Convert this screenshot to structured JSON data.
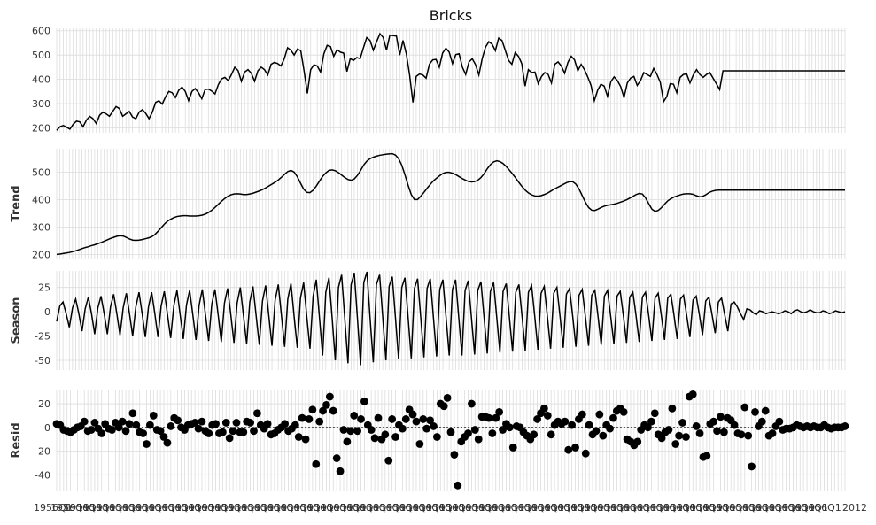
{
  "chart_data": [
    {
      "type": "line",
      "title": "Bricks",
      "ylabel": "",
      "ylim": [
        180,
        610
      ],
      "yticks": [
        200,
        300,
        400,
        500,
        600
      ],
      "series": [
        {
          "values": [
            190,
            205,
            210,
            203,
            195,
            215,
            228,
            225,
            205,
            232,
            248,
            238,
            218,
            252,
            265,
            258,
            248,
            268,
            288,
            280,
            248,
            258,
            268,
            245,
            238,
            265,
            275,
            260,
            238,
            265,
            305,
            312,
            298,
            328,
            350,
            345,
            325,
            355,
            368,
            350,
            312,
            350,
            362,
            345,
            320,
            358,
            360,
            352,
            340,
            378,
            402,
            408,
            395,
            420,
            450,
            436,
            392,
            430,
            440,
            425,
            392,
            435,
            450,
            440,
            418,
            462,
            470,
            465,
            455,
            485,
            530,
            520,
            500,
            525,
            518,
            435,
            342,
            440,
            460,
            455,
            430,
            505,
            540,
            535,
            495,
            522,
            512,
            508,
            432,
            485,
            478,
            490,
            485,
            530,
            572,
            560,
            520,
            555,
            588,
            572,
            520,
            582,
            580,
            578,
            500,
            560,
            505,
            418,
            305,
            412,
            422,
            418,
            405,
            462,
            480,
            482,
            450,
            508,
            528,
            512,
            465,
            502,
            505,
            450,
            420,
            472,
            485,
            460,
            418,
            485,
            532,
            555,
            545,
            518,
            570,
            560,
            520,
            478,
            462,
            510,
            495,
            465,
            372,
            440,
            428,
            430,
            382,
            412,
            428,
            420,
            385,
            462,
            472,
            455,
            425,
            470,
            495,
            480,
            435,
            462,
            440,
            410,
            375,
            312,
            355,
            380,
            372,
            330,
            390,
            410,
            395,
            370,
            325,
            385,
            405,
            412,
            375,
            395,
            428,
            420,
            412,
            445,
            420,
            388,
            308,
            330,
            382,
            380,
            345,
            408,
            420,
            422,
            385,
            418,
            440,
            420,
            408,
            420,
            428,
            405,
            382,
            358,
            435,
            435,
            435,
            435,
            435,
            435,
            435,
            435,
            435,
            435,
            435,
            435,
            435,
            435,
            435,
            435,
            435,
            435,
            435,
            435,
            435,
            435,
            435,
            435,
            435,
            435,
            435,
            435,
            435,
            435,
            435,
            435,
            435,
            435,
            435,
            435,
            435,
            435
          ]
        }
      ]
    },
    {
      "type": "line",
      "title": "",
      "ylabel": "Trend",
      "ylim": [
        185,
        585
      ],
      "yticks": [
        200,
        300,
        400,
        500
      ],
      "series": [
        {
          "values": [
            200,
            201,
            203,
            205,
            207,
            210,
            213,
            217,
            221,
            225,
            228,
            232,
            235,
            239,
            243,
            248,
            253,
            258,
            262,
            266,
            268,
            267,
            262,
            256,
            252,
            251,
            252,
            254,
            257,
            260,
            264,
            272,
            284,
            297,
            310,
            321,
            328,
            334,
            338,
            340,
            341,
            341,
            340,
            340,
            340,
            341,
            343,
            347,
            353,
            361,
            371,
            382,
            393,
            403,
            411,
            417,
            420,
            421,
            420,
            418,
            418,
            420,
            423,
            427,
            431,
            436,
            442,
            449,
            456,
            463,
            471,
            481,
            492,
            502,
            506,
            500,
            483,
            460,
            438,
            426,
            425,
            434,
            449,
            467,
            484,
            497,
            506,
            508,
            505,
            498,
            489,
            480,
            473,
            470,
            475,
            488,
            506,
            526,
            540,
            549,
            554,
            558,
            561,
            563,
            565,
            566,
            567,
            562,
            549,
            525,
            490,
            452,
            418,
            400,
            400,
            412,
            426,
            441,
            455,
            468,
            478,
            487,
            495,
            499,
            499,
            496,
            491,
            484,
            477,
            471,
            466,
            464,
            465,
            470,
            480,
            494,
            512,
            527,
            537,
            541,
            538,
            531,
            520,
            507,
            493,
            478,
            462,
            447,
            434,
            424,
            417,
            413,
            412,
            414,
            418,
            423,
            430,
            437,
            443,
            449,
            455,
            461,
            465,
            465,
            456,
            438,
            414,
            390,
            371,
            361,
            360,
            365,
            371,
            376,
            379,
            381,
            383,
            386,
            390,
            394,
            399,
            405,
            411,
            418,
            422,
            420,
            406,
            385,
            365,
            357,
            360,
            370,
            383,
            395,
            403,
            409,
            413,
            417,
            420,
            421,
            421,
            419,
            414,
            410,
            411,
            417,
            425,
            430,
            433,
            434,
            434,
            434,
            434,
            434,
            434,
            434,
            434,
            434,
            434,
            434,
            434,
            434,
            434,
            434,
            434,
            434,
            434,
            434,
            434,
            434,
            434,
            434,
            434,
            434,
            434,
            434,
            434,
            434,
            434,
            434,
            434,
            434,
            434,
            434,
            434,
            434,
            434,
            434,
            434,
            434
          ]
        }
      ]
    },
    {
      "type": "line",
      "title": "",
      "ylabel": "Season",
      "ylim": [
        -60,
        42
      ],
      "yticks": [
        -50,
        -25,
        0,
        25
      ],
      "series": [
        {
          "values": [
            -10,
            6,
            10,
            -2,
            -16,
            4,
            13,
            -2,
            -20,
            3,
            15,
            -2,
            -23,
            4,
            16,
            -2,
            -23,
            5,
            18,
            -2,
            -24,
            4,
            19,
            -2,
            -25,
            5,
            20,
            -2,
            -26,
            5,
            20,
            -2,
            -26,
            6,
            21,
            -3,
            -27,
            6,
            22,
            -3,
            -28,
            7,
            22,
            -3,
            -29,
            7,
            23,
            -3,
            -30,
            8,
            23,
            -3,
            -31,
            9,
            24,
            -3,
            -32,
            9,
            25,
            -4,
            -33,
            10,
            26,
            -4,
            -34,
            11,
            27,
            -4,
            -35,
            12,
            28,
            -4,
            -36,
            13,
            29,
            -5,
            -37,
            14,
            30,
            -5,
            -38,
            16,
            33,
            -6,
            -45,
            20,
            35,
            -6,
            -50,
            25,
            38,
            -7,
            -53,
            28,
            40,
            -7,
            -55,
            30,
            41,
            -7,
            -52,
            28,
            38,
            -6,
            -50,
            26,
            36,
            -6,
            -49,
            25,
            35,
            -6,
            -48,
            24,
            34,
            -6,
            -47,
            24,
            34,
            -6,
            -46,
            23,
            33,
            -6,
            -45,
            23,
            33,
            -6,
            -45,
            22,
            32,
            -6,
            -44,
            22,
            31,
            -6,
            -43,
            21,
            30,
            -6,
            -42,
            21,
            29,
            -6,
            -41,
            20,
            28,
            -5,
            -40,
            20,
            27,
            -5,
            -39,
            19,
            26,
            -5,
            -38,
            19,
            25,
            -5,
            -37,
            18,
            24,
            -5,
            -36,
            17,
            23,
            -5,
            -35,
            17,
            22,
            -5,
            -34,
            16,
            22,
            -5,
            -33,
            16,
            21,
            -4,
            -32,
            15,
            20,
            -4,
            -31,
            15,
            20,
            -4,
            -30,
            14,
            19,
            -4,
            -29,
            14,
            18,
            -4,
            -28,
            13,
            17,
            -4,
            -26,
            12,
            16,
            -3,
            -24,
            11,
            15,
            -3,
            -22,
            10,
            14,
            -3,
            -20,
            8,
            10,
            5,
            -2,
            -8,
            3,
            2,
            -1,
            -3,
            1,
            0,
            -2,
            -1,
            0,
            -1,
            -2,
            -1,
            1,
            0,
            -2,
            1,
            2,
            0,
            -1,
            0,
            2,
            0,
            -1,
            -1,
            1,
            0,
            -2,
            -1,
            1,
            0,
            -1,
            0
          ]
        }
      ]
    },
    {
      "type": "scatter",
      "title": "",
      "ylabel": "Resid",
      "ylim": [
        -54,
        32
      ],
      "yticks": [
        -40,
        -20,
        0,
        20
      ],
      "xlabel": "",
      "series": [
        {
          "values": [
            3,
            2,
            -2,
            -3,
            -4,
            -2,
            0,
            1,
            5,
            -3,
            -2,
            4,
            -1,
            -5,
            3,
            -1,
            -2,
            4,
            0,
            5,
            -3,
            3,
            12,
            2,
            -4,
            -5,
            -14,
            2,
            10,
            -2,
            -3,
            -8,
            -13,
            1,
            8,
            6,
            0,
            -2,
            2,
            3,
            4,
            -1,
            5,
            -3,
            -5,
            2,
            3,
            -5,
            -4,
            4,
            -9,
            -3,
            4,
            -4,
            -4,
            5,
            4,
            -3,
            12,
            2,
            -1,
            3,
            -6,
            -5,
            -2,
            0,
            3,
            -3,
            -1,
            2,
            -8,
            8,
            -10,
            7,
            15,
            -31,
            5,
            14,
            19,
            26,
            14,
            -26,
            -37,
            -2,
            -12,
            -3,
            10,
            -3,
            7,
            22,
            2,
            -2,
            -9,
            8,
            -10,
            -6,
            -28,
            7,
            -8,
            2,
            -1,
            7,
            15,
            11,
            5,
            -14,
            7,
            -1,
            6,
            1,
            -8,
            20,
            18,
            25,
            -4,
            -23,
            -49,
            -12,
            -8,
            -5,
            20,
            -2,
            -10,
            9,
            9,
            8,
            -5,
            8,
            13,
            -2,
            3,
            0,
            -17,
            1,
            0,
            -4,
            -7,
            -10,
            -6,
            7,
            12,
            16,
            10,
            -6,
            2,
            5,
            3,
            5,
            -19,
            2,
            -17,
            7,
            11,
            -22,
            2,
            -6,
            -3,
            11,
            -7,
            2,
            -1,
            8,
            14,
            16,
            13,
            -10,
            -12,
            -15,
            -12,
            -2,
            2,
            0,
            5,
            12,
            -6,
            -9,
            -4,
            -2,
            16,
            -14,
            -7,
            4,
            -8,
            26,
            28,
            1,
            -5,
            -25,
            -24,
            3,
            5,
            -3,
            9,
            -4,
            8,
            6,
            2,
            -5,
            -6,
            17,
            -7,
            -33,
            13,
            1,
            5,
            14,
            -7,
            -5,
            1,
            5,
            -2,
            -1,
            -1,
            0,
            2,
            1,
            0,
            1,
            0,
            1,
            0,
            0,
            2,
            0,
            -1,
            0,
            0,
            0,
            1
          ]
        }
      ]
    }
  ],
  "x_axis": {
    "first_label": "1956Q1",
    "last_label": "2012"
  }
}
